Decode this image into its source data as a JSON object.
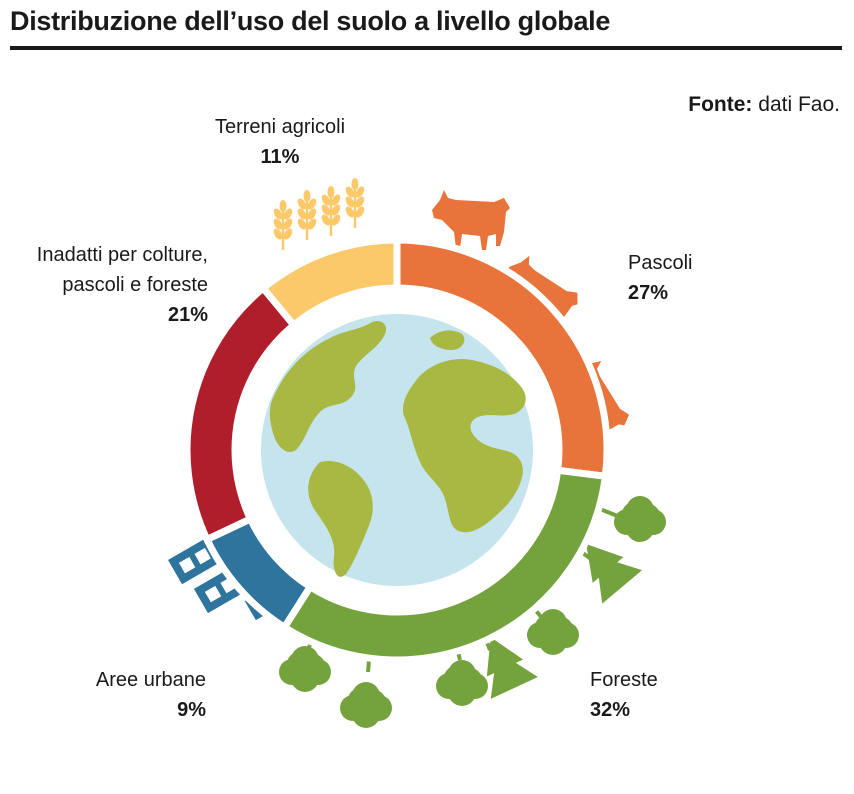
{
  "header": {
    "title": "Distribuzione dell’uso del suolo a livello globale",
    "source_label": "Fonte:",
    "source_text": "dati Fao."
  },
  "chart_data": {
    "type": "pie",
    "title": "Distribuzione dell’uso del suolo a livello globale",
    "series": [
      {
        "name": "Terreni agricoli",
        "value": 11,
        "label": "11%",
        "color": "#fbc96a"
      },
      {
        "name": "Pascoli",
        "value": 27,
        "label": "27%",
        "color": "#e8743b"
      },
      {
        "name": "Foreste",
        "value": 32,
        "label": "32%",
        "color": "#74a33e"
      },
      {
        "name": "Aree urbane",
        "value": 9,
        "label": "9%",
        "color": "#2f749c"
      },
      {
        "name": "Inadatti per colture, pascoli e foreste",
        "value": 21,
        "label": "21%",
        "color": "#b01e2b"
      }
    ],
    "legend": "none"
  },
  "labels": {
    "agricoli": {
      "line1": "Terreni agricoli"
    },
    "pascoli": {
      "line1": "Pascoli"
    },
    "foreste": {
      "line1": "Foreste"
    },
    "urbane": {
      "line1": "Aree urbane"
    },
    "inadatti": {
      "line1": "Inadatti per colture,",
      "line2": "pascoli e foreste"
    }
  },
  "icons": {
    "globe": "globe-icon",
    "wheat": "wheat-icon",
    "cow": "cow-icon",
    "tree": "tree-icon",
    "building": "building-icon"
  }
}
